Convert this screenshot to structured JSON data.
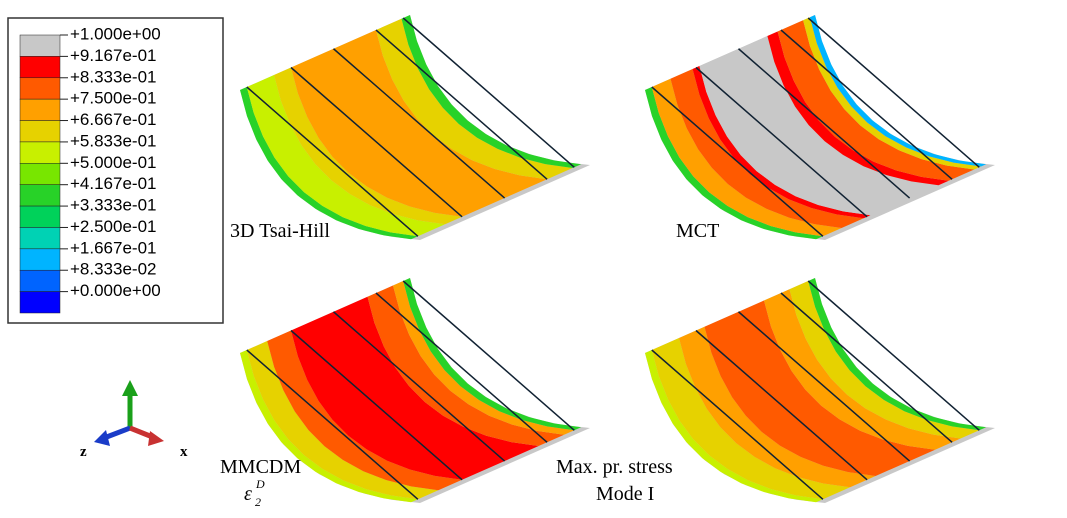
{
  "legend": {
    "labels": [
      "+1.000e+00",
      "+9.167e-01",
      "+8.333e-01",
      "+7.500e-01",
      "+6.667e-01",
      "+5.833e-01",
      "+5.000e-01",
      "+4.167e-01",
      "+3.333e-01",
      "+2.500e-01",
      "+1.667e-01",
      "+8.333e-02",
      "+0.000e+00"
    ],
    "colors": [
      "#c8c8c8",
      "#ff0000",
      "#ff5a00",
      "#ffa000",
      "#e6d200",
      "#c8f000",
      "#78e600",
      "#28d228",
      "#00d25a",
      "#00d2b4",
      "#00b4ff",
      "#0064ff",
      "#0000ff"
    ]
  },
  "panels": [
    {
      "label": "3D Tsai-Hill"
    },
    {
      "label": "MCT"
    },
    {
      "label": "MMCDM",
      "symbol": "ε",
      "subscript": "2",
      "superscript": "D"
    },
    {
      "label": "Max. pr. stress",
      "label2": "Mode I"
    }
  ],
  "triad": {
    "z": "z",
    "x": "x"
  }
}
